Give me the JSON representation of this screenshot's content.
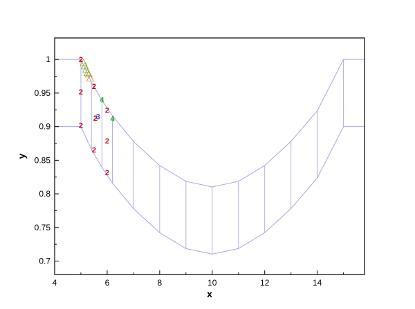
{
  "chart_data": {
    "type": "line",
    "xlabel": "x",
    "ylabel": "y",
    "xlim": [
      4,
      15.8
    ],
    "ylim": [
      0.68,
      1.032
    ],
    "x_ticks": [
      4,
      6,
      8,
      10,
      12,
      14
    ],
    "y_ticks": [
      0.7,
      0.75,
      0.8,
      0.85,
      0.9,
      0.95,
      1
    ],
    "x_tick_labels": [
      "4",
      "6",
      "8",
      "10",
      "12",
      "14"
    ],
    "y_tick_labels": [
      "0.7",
      "0.75",
      "0.8",
      "0.85",
      "0.9",
      "0.95",
      "1"
    ],
    "grid": false,
    "colors": {
      "mesh": "#a6a6e0",
      "marker2": "#c00020",
      "marker3": "#3030c0",
      "marker4": "#20b020",
      "triangle": "#e09020",
      "triangle2": "#60c060",
      "axis": "#000000"
    },
    "series": [
      {
        "x": [
          4,
          5,
          5.4,
          5.8,
          6.2,
          7,
          8,
          9,
          10,
          11,
          12,
          13,
          14,
          15,
          15.8
        ],
        "y": [
          1.0,
          1.0,
          0.9662,
          0.9392,
          0.9163,
          0.8781,
          0.8422,
          0.8186,
          0.8104,
          0.8186,
          0.8422,
          0.8781,
          0.9235,
          1.0,
          1.0
        ]
      },
      {
        "x": [
          4,
          5,
          5.4,
          5.8,
          6.2,
          7,
          8,
          9,
          10,
          11,
          12,
          13,
          14,
          15,
          15.8
        ],
        "y": [
          0.9,
          0.9,
          0.8662,
          0.8392,
          0.8163,
          0.7781,
          0.7422,
          0.7186,
          0.7104,
          0.7186,
          0.7422,
          0.7781,
          0.8235,
          0.9,
          0.9
        ]
      }
    ],
    "mesh_lines_x": [
      5,
      5.4,
      5.8,
      6.2,
      7,
      8,
      9,
      10,
      11,
      12,
      13,
      14,
      15
    ],
    "markers": [
      {
        "label": "2",
        "x": 5.0,
        "y": 1.0,
        "color": "marker2"
      },
      {
        "label": "2",
        "x": 5.0,
        "y": 0.952,
        "color": "marker2"
      },
      {
        "label": "2",
        "x": 5.0,
        "y": 0.902,
        "color": "marker2"
      },
      {
        "label": "2",
        "x": 5.5,
        "y": 0.96,
        "color": "marker2"
      },
      {
        "label": "2",
        "x": 5.55,
        "y": 0.913,
        "color": "marker2"
      },
      {
        "label": "2",
        "x": 5.5,
        "y": 0.866,
        "color": "marker2"
      },
      {
        "label": "2",
        "x": 6.0,
        "y": 0.925,
        "color": "marker2"
      },
      {
        "label": "2",
        "x": 6.0,
        "y": 0.879,
        "color": "marker2"
      },
      {
        "label": "2",
        "x": 6.0,
        "y": 0.832,
        "color": "marker2"
      },
      {
        "label": "3",
        "x": 5.65,
        "y": 0.915,
        "color": "marker3"
      },
      {
        "label": "4",
        "x": 5.8,
        "y": 0.94,
        "color": "marker4"
      },
      {
        "label": "4",
        "x": 6.2,
        "y": 0.912,
        "color": "marker4"
      }
    ],
    "triangles": [
      {
        "x": 5.1,
        "y": 0.995,
        "color": "triangle"
      },
      {
        "x": 5.2,
        "y": 0.985,
        "color": "triangle"
      },
      {
        "x": 5.3,
        "y": 0.978,
        "color": "triangle"
      },
      {
        "x": 5.35,
        "y": 0.972,
        "color": "triangle"
      },
      {
        "x": 5.15,
        "y": 0.99,
        "color": "triangle2"
      },
      {
        "x": 5.25,
        "y": 0.98,
        "color": "triangle2"
      }
    ]
  }
}
